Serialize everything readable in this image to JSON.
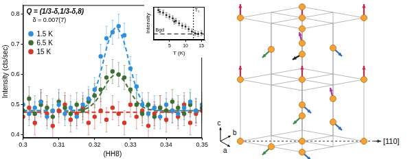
{
  "chart_data": [
    {
      "type": "scatter",
      "title": "Q = (1/3-δ,1/3-δ,8)",
      "annotations": [
        "δ = 0.007(7)"
      ],
      "x_label": "(HH8)",
      "y_label": "Intensity (cts/sec)",
      "x": [
        0.3,
        0.3017,
        0.3033,
        0.305,
        0.3067,
        0.3083,
        0.31,
        0.3117,
        0.3133,
        0.315,
        0.3167,
        0.3183,
        0.32,
        0.3217,
        0.3233,
        0.325,
        0.3267,
        0.3283,
        0.33,
        0.3317,
        0.3333,
        0.335,
        0.3367,
        0.3383,
        0.34,
        0.3417,
        0.3433,
        0.345,
        0.3467,
        0.3483,
        0.35
      ],
      "series": [
        {
          "name": "1.5 K",
          "color": "#2f8fd8",
          "marker": "circle",
          "values": [
            0.5,
            0.47,
            0.49,
            0.51,
            0.46,
            0.48,
            0.5,
            0.47,
            0.49,
            0.46,
            0.5,
            0.52,
            0.55,
            0.66,
            0.72,
            0.74,
            0.76,
            0.73,
            0.62,
            0.56,
            0.5,
            0.47,
            0.49,
            0.46,
            0.5,
            0.48,
            0.47,
            0.49,
            0.51,
            0.48,
            0.5
          ],
          "errors": [
            0.04,
            0.04,
            0.04,
            0.04,
            0.04,
            0.04,
            0.04,
            0.04,
            0.04,
            0.04,
            0.04,
            0.04,
            0.04,
            0.04,
            0.04,
            0.04,
            0.04,
            0.04,
            0.04,
            0.04,
            0.04,
            0.04,
            0.04,
            0.04,
            0.04,
            0.04,
            0.04,
            0.04,
            0.04,
            0.04,
            0.04
          ]
        },
        {
          "name": "6.5 K",
          "color": "#3f6e34",
          "marker": "circle",
          "values": [
            0.48,
            0.52,
            0.47,
            0.5,
            0.49,
            0.46,
            0.51,
            0.49,
            0.47,
            0.5,
            0.48,
            0.51,
            0.53,
            0.55,
            0.59,
            0.61,
            0.6,
            0.59,
            0.55,
            0.5,
            0.47,
            0.5,
            0.46,
            0.49,
            0.48,
            0.51,
            0.49,
            0.47,
            0.5,
            0.48,
            0.49
          ],
          "errors": [
            0.04,
            0.04,
            0.04,
            0.04,
            0.04,
            0.04,
            0.04,
            0.04,
            0.04,
            0.04,
            0.04,
            0.04,
            0.04,
            0.04,
            0.04,
            0.04,
            0.04,
            0.04,
            0.04,
            0.04,
            0.04,
            0.04,
            0.04,
            0.04,
            0.04,
            0.04,
            0.04,
            0.04,
            0.04,
            0.04,
            0.04
          ]
        },
        {
          "name": "15 K",
          "color": "#d0392b",
          "marker": "circle",
          "values": [
            0.46,
            0.49,
            0.44,
            0.51,
            0.47,
            0.43,
            0.48,
            0.5,
            0.45,
            0.47,
            0.49,
            0.44,
            0.46,
            0.48,
            0.45,
            0.49,
            0.47,
            0.44,
            0.5,
            0.46,
            0.48,
            0.43,
            0.47,
            0.49,
            0.45,
            0.48,
            0.46,
            0.5,
            0.44,
            0.47,
            0.48
          ],
          "errors": [
            0.04,
            0.04,
            0.04,
            0.04,
            0.04,
            0.04,
            0.04,
            0.04,
            0.04,
            0.04,
            0.04,
            0.04,
            0.04,
            0.04,
            0.04,
            0.04,
            0.04,
            0.04,
            0.04,
            0.04,
            0.04,
            0.04,
            0.04,
            0.04,
            0.04,
            0.04,
            0.04,
            0.04,
            0.04,
            0.04,
            0.04
          ]
        }
      ],
      "fits": [
        {
          "color": "#2f8fd8",
          "line_style": "dashed",
          "x": [
            0.3,
            0.305,
            0.31,
            0.314,
            0.316,
            0.318,
            0.32,
            0.322,
            0.324,
            0.326,
            0.328,
            0.33,
            0.332,
            0.334,
            0.336,
            0.338,
            0.34,
            0.345,
            0.35
          ],
          "values": [
            0.48,
            0.48,
            0.48,
            0.481,
            0.485,
            0.5,
            0.543,
            0.623,
            0.714,
            0.755,
            0.714,
            0.623,
            0.543,
            0.5,
            0.485,
            0.481,
            0.48,
            0.48,
            0.48
          ]
        },
        {
          "color": "#3f6e34",
          "line_style": "dashed",
          "x": [
            0.3,
            0.305,
            0.31,
            0.314,
            0.316,
            0.318,
            0.32,
            0.322,
            0.324,
            0.326,
            0.328,
            0.33,
            0.332,
            0.334,
            0.336,
            0.338,
            0.34,
            0.345,
            0.35
          ],
          "values": [
            0.48,
            0.48,
            0.48,
            0.48,
            0.482,
            0.489,
            0.508,
            0.542,
            0.582,
            0.6,
            0.582,
            0.542,
            0.508,
            0.489,
            0.482,
            0.48,
            0.48,
            0.48,
            0.48
          ]
        },
        {
          "color": "#d0392b",
          "line_style": "dashed",
          "x": [
            0.3,
            0.305,
            0.31,
            0.314,
            0.316,
            0.318,
            0.32,
            0.322,
            0.324,
            0.326,
            0.328,
            0.33,
            0.332,
            0.334,
            0.336,
            0.338,
            0.34,
            0.345,
            0.35
          ],
          "values": [
            0.475,
            0.475,
            0.475,
            0.475,
            0.475,
            0.475,
            0.475,
            0.475,
            0.475,
            0.475,
            0.475,
            0.475,
            0.475,
            0.475,
            0.475,
            0.475,
            0.475,
            0.475,
            0.475
          ]
        }
      ],
      "xlim": [
        0.3,
        0.35
      ],
      "xticks": [
        0.3,
        0.31,
        0.32,
        0.33,
        0.34,
        0.35
      ],
      "ylim": [
        0.39,
        0.83
      ],
      "yticks": [
        0.4,
        0.5,
        0.6,
        0.7,
        0.8
      ],
      "legend": "upper left",
      "grid": false
    },
    {
      "type": "scatter",
      "x_label": "T (K)",
      "y_label": "Intensity",
      "x": [
        1.5,
        2,
        3,
        4,
        5,
        6,
        6.5,
        7,
        8,
        9,
        10,
        11,
        12,
        13,
        14,
        15
      ],
      "values": [
        0.76,
        0.74,
        0.73,
        0.7,
        0.68,
        0.66,
        0.62,
        0.63,
        0.6,
        0.57,
        0.56,
        0.53,
        0.5,
        0.48,
        0.47,
        0.48
      ],
      "errors": [
        0.03,
        0.03,
        0.03,
        0.03,
        0.03,
        0.03,
        0.03,
        0.03,
        0.03,
        0.03,
        0.03,
        0.03,
        0.03,
        0.03,
        0.03,
        0.03
      ],
      "color": "#222222",
      "marker": "square",
      "xlim": [
        0,
        16
      ],
      "xticks": [
        5,
        10,
        15
      ],
      "ylim": [
        0.4,
        0.8
      ],
      "tick_labels": "x",
      "grid": false,
      "annotations": [
        {
          "text": "Bgd",
          "y": 0.47,
          "line_style": "dashed"
        },
        {
          "text": "T₁",
          "x": 12.5,
          "line_style": "dotted"
        }
      ]
    }
  ],
  "diagram": {
    "axis_labels": [
      "c",
      "b",
      "a"
    ],
    "direction_label": "[110]"
  }
}
